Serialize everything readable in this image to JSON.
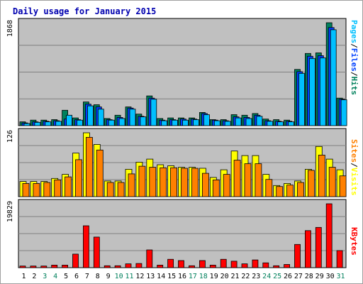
{
  "title": "Daily usage for January 2015",
  "colors": {
    "background": "#c0c0c0",
    "hits": "#00805c",
    "pages": "#00c0ff",
    "visits": "#ffff00",
    "sites": "#ff8000",
    "kbytes": "#ff0000",
    "weekday_label": "#000000",
    "weekend_label": "#00805c",
    "title": "#0000b0"
  },
  "chart_data": [
    {
      "type": "bar",
      "panel": "pages_files_hits",
      "categories": [
        "1",
        "2",
        "3",
        "4",
        "5",
        "6",
        "7",
        "8",
        "9",
        "10",
        "11",
        "12",
        "13",
        "14",
        "15",
        "16",
        "17",
        "18",
        "19",
        "20",
        "21",
        "22",
        "23",
        "24",
        "25",
        "26",
        "27",
        "28",
        "29",
        "30",
        "31"
      ],
      "weekend_days": [
        "3",
        "4",
        "10",
        "11",
        "17",
        "18",
        "24",
        "25",
        "31"
      ],
      "y_max_label": "1868",
      "legend": [
        "Pages",
        "/",
        "Files",
        "/",
        "Hits"
      ],
      "series": [
        {
          "name": "Hits",
          "values": [
            70,
            100,
            100,
            110,
            280,
            140,
            430,
            380,
            130,
            190,
            340,
            210,
            540,
            130,
            140,
            140,
            140,
            240,
            110,
            110,
            200,
            190,
            220,
            120,
            110,
            100,
            1020,
            1310,
            1320,
            1868,
            500
          ]
        },
        {
          "name": "Files",
          "values": [
            50,
            70,
            80,
            90,
            120,
            110,
            390,
            340,
            110,
            150,
            320,
            170,
            500,
            100,
            110,
            120,
            120,
            220,
            100,
            90,
            160,
            150,
            190,
            90,
            80,
            80,
            980,
            1260,
            1270,
            1780,
            480
          ]
        },
        {
          "name": "Pages",
          "values": [
            40,
            60,
            70,
            80,
            190,
            100,
            360,
            300,
            100,
            130,
            300,
            160,
            480,
            90,
            100,
            100,
            110,
            200,
            90,
            80,
            140,
            130,
            170,
            80,
            70,
            70,
            950,
            1220,
            1230,
            1740,
            470
          ]
        }
      ]
    },
    {
      "type": "bar",
      "panel": "sites_visits",
      "categories": [
        "1",
        "2",
        "3",
        "4",
        "5",
        "6",
        "7",
        "8",
        "9",
        "10",
        "11",
        "12",
        "13",
        "14",
        "15",
        "16",
        "17",
        "18",
        "19",
        "20",
        "21",
        "22",
        "23",
        "24",
        "25",
        "26",
        "27",
        "28",
        "29",
        "30",
        "31"
      ],
      "y_max_label": "126",
      "legend": [
        "Sites",
        "/",
        "Visits"
      ],
      "series": [
        {
          "name": "Visits",
          "values": [
            30,
            30,
            30,
            36,
            44,
            86,
            126,
            103,
            31,
            31,
            54,
            68,
            74,
            63,
            61,
            58,
            58,
            56,
            38,
            53,
            90,
            81,
            81,
            44,
            22,
            26,
            31,
            54,
            99,
            74,
            53
          ]
        },
        {
          "name": "Sites",
          "values": [
            26,
            26,
            28,
            33,
            39,
            73,
            117,
            92,
            28,
            28,
            45,
            60,
            58,
            57,
            57,
            56,
            56,
            46,
            33,
            44,
            72,
            65,
            65,
            34,
            20,
            23,
            28,
            52,
            82,
            58,
            41
          ]
        }
      ]
    },
    {
      "type": "bar",
      "panel": "kbytes",
      "categories": [
        "1",
        "2",
        "3",
        "4",
        "5",
        "6",
        "7",
        "8",
        "9",
        "10",
        "11",
        "12",
        "13",
        "14",
        "15",
        "16",
        "17",
        "18",
        "19",
        "20",
        "21",
        "22",
        "23",
        "24",
        "25",
        "26",
        "27",
        "28",
        "29",
        "30",
        "31"
      ],
      "y_max_label": "19829",
      "legend": [
        "KBytes"
      ],
      "series": [
        {
          "name": "KBytes",
          "values": [
            500,
            500,
            500,
            800,
            800,
            4200,
            13000,
            9500,
            600,
            600,
            1200,
            1300,
            5500,
            800,
            2600,
            2200,
            600,
            2200,
            800,
            2600,
            2000,
            1200,
            2400,
            1500,
            600,
            1000,
            7200,
            11500,
            12500,
            19829,
            5300
          ]
        }
      ]
    }
  ]
}
